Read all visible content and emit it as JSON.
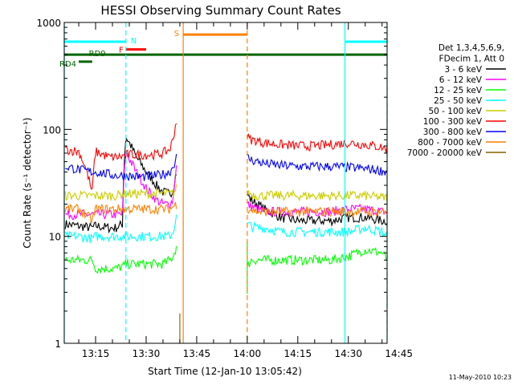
{
  "chart_data": {
    "type": "line",
    "title": "HESSI Observing Summary Count Rates",
    "xlabel": "Start Time (12-Jan-10 13:05:42)",
    "ylabel": "Count Rate (s⁻¹ detector⁻¹)",
    "ylog": true,
    "ylim": [
      1,
      1000
    ],
    "xlim_min": [
      5.7,
      101.5
    ],
    "x_unit": "minutes after 13:00",
    "x_ticks": [
      {
        "at": 15,
        "label": "13:15"
      },
      {
        "at": 30,
        "label": "13:30"
      },
      {
        "at": 45,
        "label": "13:45"
      },
      {
        "at": 60,
        "label": "14:00"
      },
      {
        "at": 75,
        "label": "14:15"
      },
      {
        "at": 90,
        "label": "14:30"
      },
      {
        "at": 105,
        "label": "14:45"
      }
    ],
    "y_ticks": [
      {
        "at": 1,
        "label": "1"
      },
      {
        "at": 10,
        "label": "10"
      },
      {
        "at": 100,
        "label": "100"
      },
      {
        "at": 1000,
        "label": "1000"
      }
    ],
    "legend_header": [
      "Det 1,3,4,5,6,9,",
      "FDecim 1, Att 0"
    ],
    "legend_position": "right",
    "series": [
      {
        "name": "3 - 6 keV",
        "color": "#000000",
        "seg1": {
          "x": [
            6,
            10,
            14,
            15,
            19,
            21,
            23,
            24,
            27,
            30,
            33,
            35,
            37,
            38,
            39
          ],
          "y": [
            13,
            12.5,
            12,
            12.5,
            12,
            12,
            13,
            85,
            55,
            40,
            30,
            26,
            25,
            27,
            40
          ]
        },
        "seg2": {
          "x": [
            60,
            61,
            63,
            65,
            70,
            75,
            80,
            85,
            90,
            95,
            100,
            101.5
          ],
          "y": [
            25,
            22,
            20,
            18,
            15,
            14,
            14,
            14,
            15,
            15,
            14,
            14
          ]
        }
      },
      {
        "name": "6 - 12 keV",
        "color": "#ff00ff",
        "seg1": {
          "x": [
            6,
            10,
            14,
            15,
            19,
            21,
            23,
            24,
            27,
            30,
            33,
            35,
            37,
            38,
            39
          ],
          "y": [
            16,
            16,
            16,
            16,
            16,
            16,
            16,
            60,
            40,
            28,
            22,
            20,
            20,
            22,
            45
          ]
        },
        "seg2": {
          "x": [
            60,
            61,
            63,
            65,
            70,
            75,
            80,
            85,
            90,
            95,
            100,
            101.5
          ],
          "y": [
            20,
            19,
            18,
            17,
            17,
            17,
            17,
            17,
            18,
            18,
            17,
            17
          ]
        }
      },
      {
        "name": "12 - 25 keV",
        "color": "#00ff00",
        "seg1": {
          "x": [
            6,
            10,
            14,
            15,
            19,
            21,
            23,
            24,
            27,
            30,
            33,
            35,
            37,
            38,
            39
          ],
          "y": [
            6,
            6,
            6,
            5,
            5,
            5,
            5.2,
            5.5,
            5.5,
            5.5,
            5.5,
            5.5,
            6,
            6.5,
            8
          ]
        },
        "seg2": {
          "x": [
            60,
            61,
            63,
            65,
            70,
            75,
            80,
            85,
            90,
            95,
            100,
            101.5
          ],
          "y": [
            5,
            6,
            6,
            6,
            6,
            6,
            6,
            6,
            6.5,
            7.5,
            7,
            6
          ]
        }
      },
      {
        "name": "25 - 50 keV",
        "color": "#00ffff",
        "seg1": {
          "x": [
            6,
            10,
            14,
            15,
            19,
            21,
            23,
            24,
            27,
            30,
            33,
            35,
            37,
            38,
            39
          ],
          "y": [
            10,
            10,
            9.5,
            10,
            10,
            10,
            10,
            10,
            10,
            10,
            10,
            10,
            10,
            11,
            15
          ]
        },
        "seg2": {
          "x": [
            60,
            61,
            63,
            65,
            70,
            75,
            80,
            85,
            90,
            95,
            100,
            101.5
          ],
          "y": [
            13,
            12.5,
            12,
            12,
            11,
            11,
            11,
            11,
            11,
            12,
            11,
            10
          ]
        }
      },
      {
        "name": "50 - 100 keV",
        "color": "#cccc00",
        "seg1": {
          "x": [
            6,
            10,
            14,
            15,
            19,
            21,
            23,
            24,
            27,
            30,
            33,
            35,
            37,
            38,
            39
          ],
          "y": [
            24,
            24,
            24,
            24,
            24,
            24,
            25,
            25,
            25,
            25,
            25,
            25,
            25,
            25,
            28
          ]
        },
        "seg2": {
          "x": [
            60,
            61,
            63,
            65,
            70,
            75,
            80,
            85,
            90,
            95,
            100,
            101.5
          ],
          "y": [
            26,
            25,
            24,
            24,
            24,
            24,
            24,
            24,
            24,
            24,
            23,
            23
          ]
        }
      },
      {
        "name": "100 - 300 keV",
        "color": "#ff0000",
        "seg1": {
          "x": [
            6,
            10,
            14,
            15,
            19,
            21,
            23,
            24,
            27,
            30,
            33,
            35,
            37,
            38,
            39
          ],
          "y": [
            65,
            62,
            25,
            62,
            55,
            55,
            56,
            58,
            58,
            58,
            58,
            60,
            65,
            80,
            120
          ]
        },
        "seg2": {
          "x": [
            60,
            61,
            63,
            65,
            70,
            75,
            80,
            85,
            90,
            95,
            100,
            101.5
          ],
          "y": [
            85,
            80,
            78,
            75,
            72,
            70,
            70,
            72,
            75,
            72,
            68,
            65
          ]
        }
      },
      {
        "name": "300 - 800 keV",
        "color": "#0000ff",
        "seg1": {
          "x": [
            6,
            10,
            14,
            15,
            19,
            21,
            23,
            24,
            27,
            30,
            33,
            35,
            37,
            38,
            39
          ],
          "y": [
            45,
            42,
            40,
            40,
            38,
            37,
            37,
            37,
            36,
            36,
            37,
            38,
            40,
            45,
            55
          ]
        },
        "seg2": {
          "x": [
            60,
            61,
            63,
            65,
            70,
            75,
            80,
            85,
            90,
            95,
            100,
            101.5
          ],
          "y": [
            55,
            52,
            50,
            48,
            46,
            45,
            45,
            45,
            44,
            43,
            41,
            40
          ]
        }
      },
      {
        "name": "800 - 7000 keV",
        "color": "#ff8000",
        "seg1": {
          "x": [
            6,
            10,
            14,
            15,
            19,
            21,
            23,
            24,
            27,
            30,
            33,
            35,
            37,
            38,
            39
          ],
          "y": [
            18,
            18,
            14,
            18,
            18,
            18,
            18,
            18,
            18,
            18,
            18,
            18,
            18,
            19,
            20
          ]
        },
        "seg2": {
          "x": [
            60,
            61,
            63,
            65,
            70,
            75,
            80,
            85,
            90,
            95,
            100,
            101.5
          ],
          "y": [
            18,
            18,
            17,
            17,
            17,
            17,
            17,
            17,
            17,
            17,
            17,
            17
          ]
        }
      },
      {
        "name": "7000 - 20000 keV",
        "color": "#806000",
        "seg1": {
          "x": [
            40,
            40
          ],
          "y": [
            1,
            1.9
          ]
        },
        "seg2": {
          "x": [],
          "y": []
        }
      }
    ],
    "spike_12_25": {
      "x": [
        60,
        60
      ],
      "y": [
        2.9,
        9
      ]
    },
    "flag_bars": [
      {
        "label": "N",
        "color": "#00ffff",
        "y": 660,
        "ranges": [
          [
            5.7,
            24
          ],
          [
            89,
            101.5
          ]
        ]
      },
      {
        "label": "F",
        "color": "#ff0000",
        "y": 560,
        "ranges": [
          [
            24,
            30
          ]
        ]
      },
      {
        "label": "S",
        "color": "#ff8000",
        "y": 770,
        "ranges": [
          [
            41,
            60
          ]
        ]
      },
      {
        "label": "RD9",
        "color": "#006400",
        "y": 500,
        "ranges": [
          [
            5.7,
            101.5
          ]
        ]
      },
      {
        "label": "RD4",
        "color": "#006400",
        "y": 430,
        "ranges": [
          [
            10,
            14
          ]
        ]
      }
    ],
    "vlines": [
      {
        "x": 5.7,
        "color": "#00ffff",
        "dash": false
      },
      {
        "x": 24,
        "color": "#00ffff",
        "dash": true
      },
      {
        "x": 41,
        "color": "#ff8000",
        "dash": false
      },
      {
        "x": 60,
        "color": "#ff8000",
        "dash": true
      },
      {
        "x": 89,
        "color": "#00ffff",
        "dash": false
      },
      {
        "x": 101.5,
        "color": "#00ffff",
        "dash": true
      }
    ],
    "timestamp": "11-May-2010 10:23"
  }
}
